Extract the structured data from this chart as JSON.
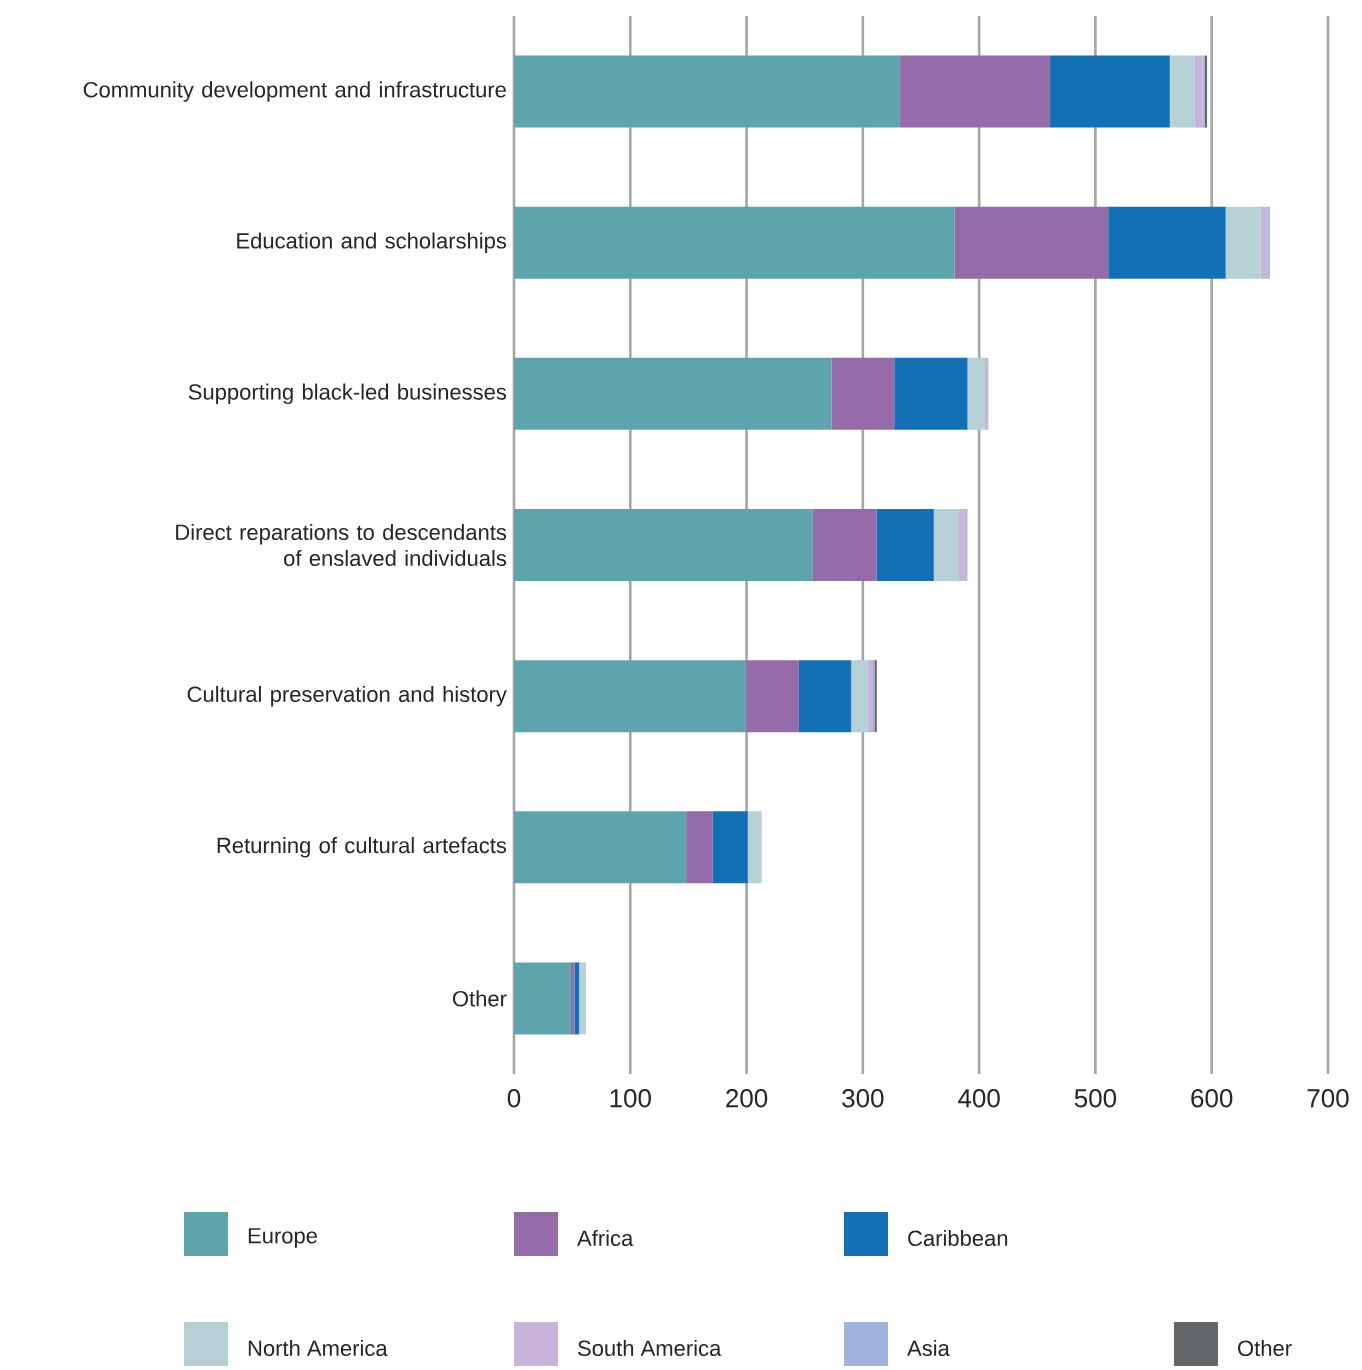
{
  "chart_data": {
    "type": "bar",
    "orientation": "horizontal",
    "stacked": true,
    "categories": [
      "Community development and infrastructure",
      "Education and scholarships",
      "Supporting black-led businesses",
      "Direct reparations to descendants of enslaved individuals",
      "Cultural preservation and history",
      "Returning of cultural artefacts",
      "Other"
    ],
    "series": [
      {
        "name": "Europe",
        "color": "#5ea4ad",
        "values": [
          332,
          379,
          273,
          257,
          199,
          148,
          49
        ]
      },
      {
        "name": "Africa",
        "color": "#966ba9",
        "values": [
          129,
          132,
          54,
          55,
          46,
          23,
          3
        ]
      },
      {
        "name": "Caribbean",
        "color": "#1470b5",
        "values": [
          103,
          101,
          63,
          49,
          45,
          30,
          4
        ]
      },
      {
        "name": "North America",
        "color": "#b6d0d6",
        "values": [
          21,
          30,
          15,
          21,
          14,
          12,
          6
        ]
      },
      {
        "name": "South America",
        "color": "#c8b3da",
        "values": [
          7,
          6,
          3,
          8,
          4,
          0,
          0
        ]
      },
      {
        "name": "Asia",
        "color": "#9fb3dc",
        "values": [
          2,
          2,
          0,
          0,
          2,
          0,
          0
        ]
      },
      {
        "name": "Other",
        "color": "#636769",
        "values": [
          2,
          0,
          0,
          0,
          2,
          0,
          0
        ]
      }
    ],
    "xlim": [
      0,
      700
    ],
    "xticks": [
      0,
      100,
      200,
      300,
      400,
      500,
      600,
      700
    ],
    "grid": "x",
    "legend": "bottom"
  }
}
